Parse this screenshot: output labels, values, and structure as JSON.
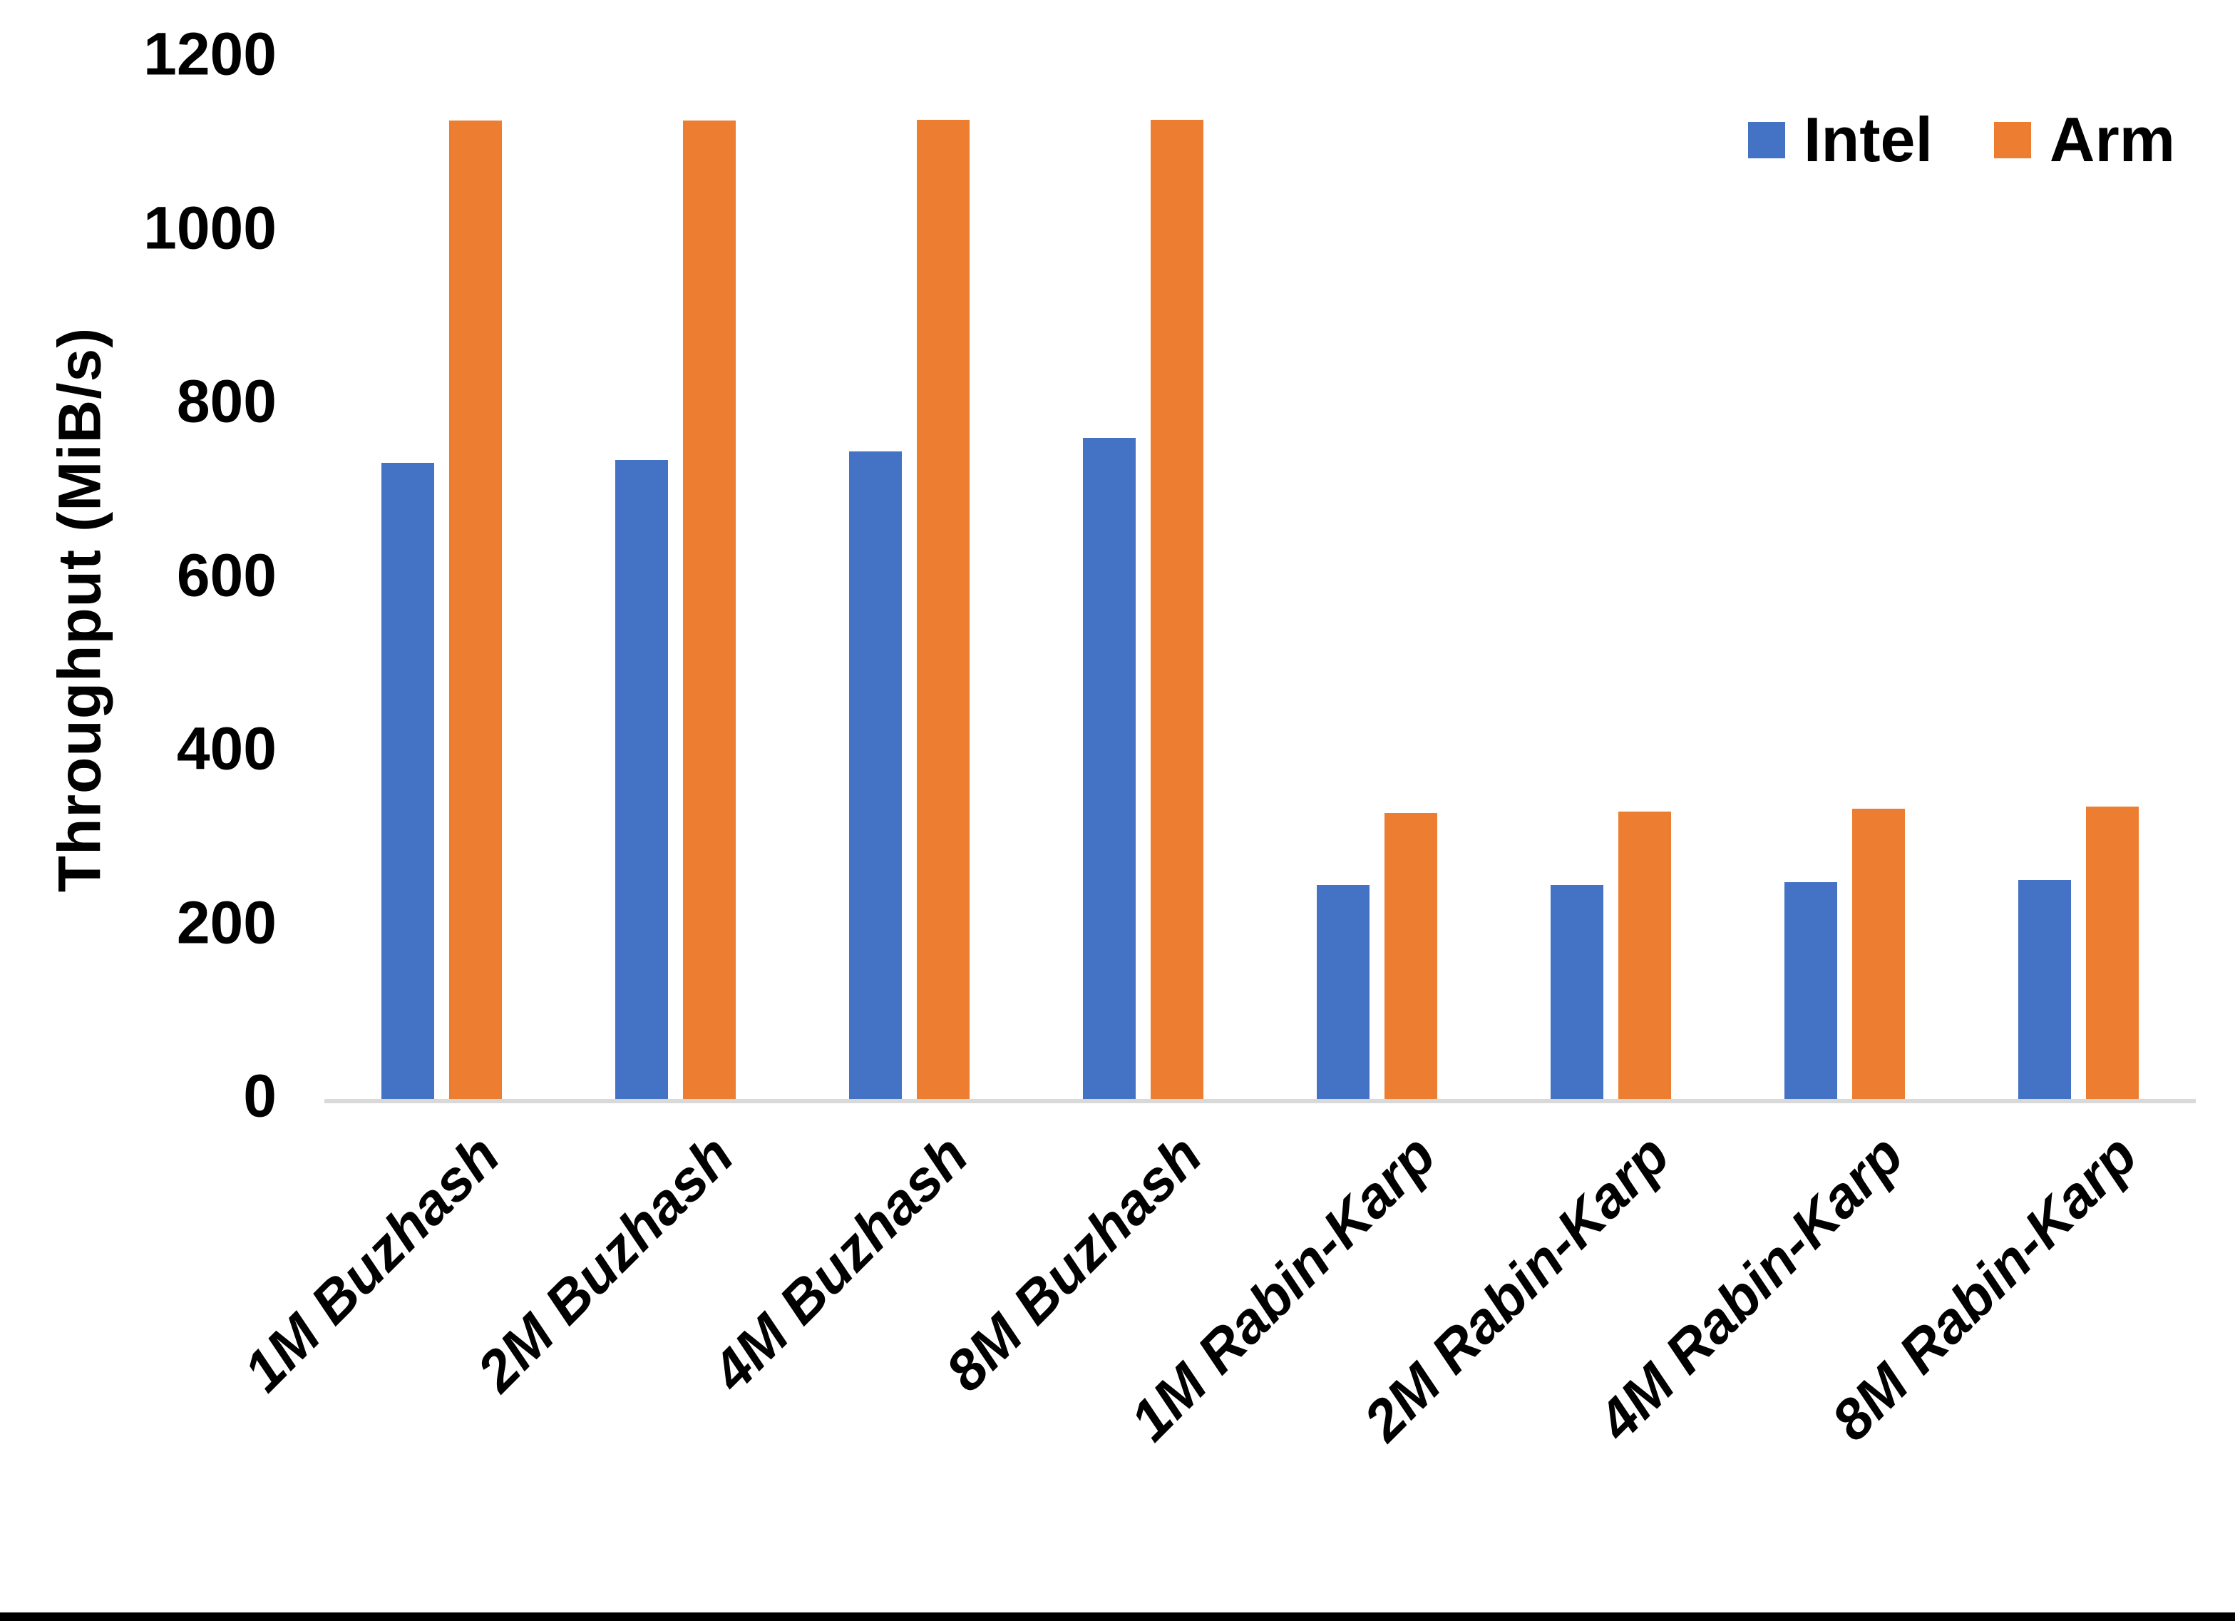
{
  "chart_data": {
    "type": "bar",
    "title": "",
    "xlabel": "",
    "ylabel": "Throughput (MiB/s)",
    "ylim": [
      0,
      1200
    ],
    "yticks": [
      0,
      200,
      400,
      600,
      800,
      1000,
      1200
    ],
    "grid": false,
    "legend_position": "top-right",
    "categories": [
      "1M Buzhash",
      "2M Buzhash",
      "4M Buzhash",
      "8M Buzhash",
      "1M Rabin-Karp",
      "2M Rabin-Karp",
      "4M Rabin-Karp",
      "8M Rabin-Karp"
    ],
    "series": [
      {
        "name": "Intel",
        "color": "#4472C4",
        "values": [
          733,
          736,
          746,
          761,
          246,
          246,
          250,
          252
        ]
      },
      {
        "name": "Arm",
        "color": "#ED7D31",
        "values": [
          1127,
          1127,
          1128,
          1128,
          329,
          331,
          334,
          337
        ]
      }
    ]
  },
  "colors": {
    "axis_line": "#D9D9D9",
    "text": "#000000",
    "background": "#FFFFFF",
    "bottom_bar": "#000000"
  }
}
